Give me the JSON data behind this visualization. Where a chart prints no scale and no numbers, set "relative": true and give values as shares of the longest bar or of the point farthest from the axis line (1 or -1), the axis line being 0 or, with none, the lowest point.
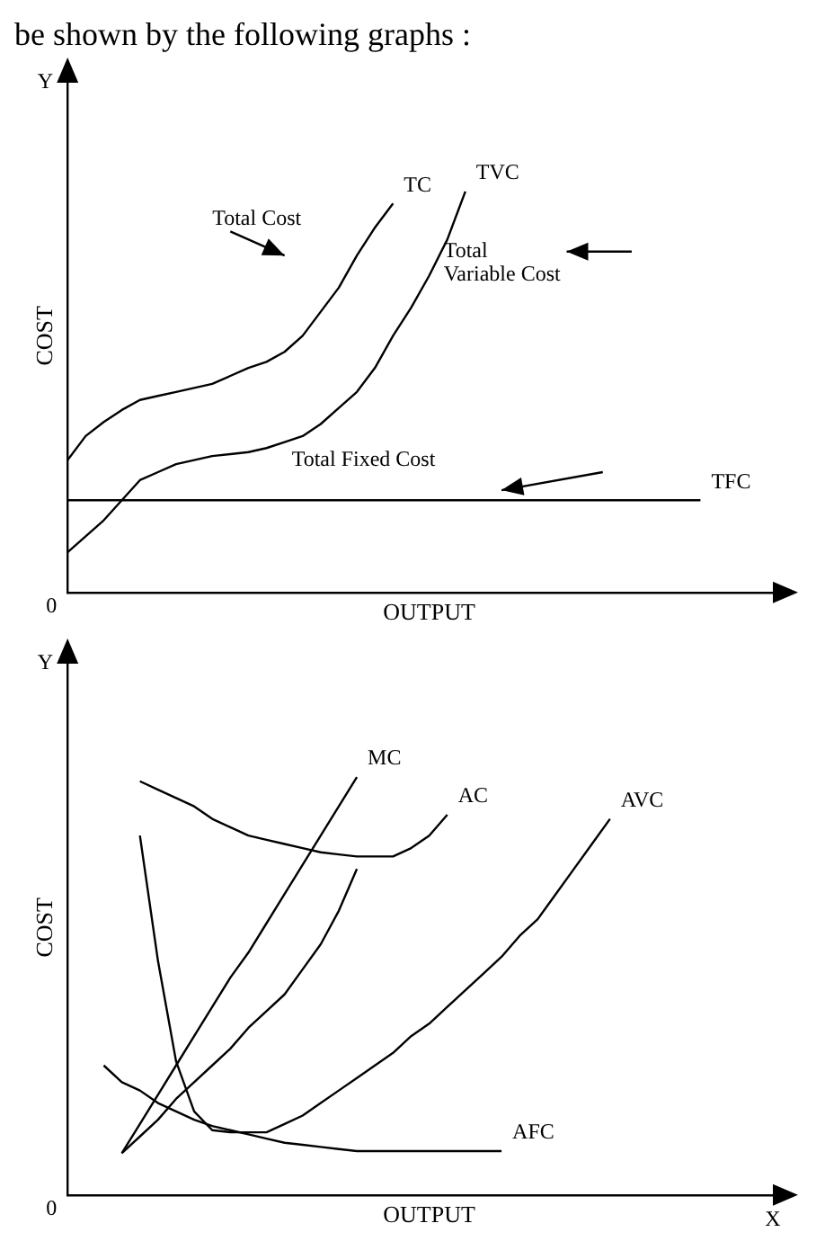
{
  "chart_data": [
    {
      "type": "line",
      "title": "be shown by the following graphs :",
      "relative": true,
      "ylabel": "COST",
      "xlabel": "OUTPUT",
      "marker": "none",
      "categories": [
        null,
        null,
        null,
        null,
        null,
        null,
        null,
        null,
        null,
        null,
        null,
        null,
        null,
        null,
        null,
        null,
        null,
        null,
        null,
        null,
        null,
        null,
        null,
        null,
        null,
        null,
        null,
        null,
        null,
        null,
        null,
        null,
        null,
        null,
        null,
        null,
        null,
        null,
        null,
        null,
        null
      ],
      "series": [
        {
          "name": "TC",
          "color": "#000000",
          "values": [
            0.33,
            0.39,
            0.425,
            0.455,
            0.48,
            0.49,
            0.5,
            0.51,
            0.52,
            0.54,
            0.56,
            0.575,
            0.6,
            0.64,
            0.7,
            0.76,
            0.84,
            0.91,
            0.97,
            null,
            null,
            null,
            null,
            null,
            null,
            null,
            null,
            null,
            null,
            null,
            null,
            null,
            null,
            null,
            null,
            null,
            null,
            null,
            null,
            null,
            null
          ]
        },
        {
          "name": "TVC",
          "color": "#000000",
          "values": [
            0.1,
            0.14,
            0.18,
            0.23,
            0.28,
            0.3,
            0.32,
            0.33,
            0.34,
            0.345,
            0.35,
            0.36,
            0.375,
            0.39,
            0.42,
            0.46,
            0.5,
            0.56,
            0.64,
            0.71,
            0.79,
            0.88,
            1,
            null,
            null,
            null,
            null,
            null,
            null,
            null,
            null,
            null,
            null,
            null,
            null,
            null,
            null,
            null,
            null,
            null,
            null
          ]
        },
        {
          "name": "TFC",
          "color": "#000000",
          "values": [
            0.23,
            0.23,
            0.23,
            0.23,
            0.23,
            0.23,
            0.23,
            0.23,
            0.23,
            0.23,
            0.23,
            0.23,
            0.23,
            0.23,
            0.23,
            0.23,
            0.23,
            0.23,
            0.23,
            0.23,
            0.23,
            0.23,
            0.23,
            0.23,
            0.23,
            0.23,
            0.23,
            0.23,
            0.23,
            0.23,
            0.23,
            0.23,
            0.23,
            0.23,
            0.23,
            0.23,
            null,
            null,
            null,
            null,
            null
          ]
        }
      ],
      "annotations": [
        "0",
        "Y",
        "Total Cost",
        "Total Variable Cost",
        "Total Fixed Cost"
      ]
    },
    {
      "type": "line",
      "relative": true,
      "ylabel": "COST",
      "xlabel": "OUTPUT",
      "marker": "none",
      "categories": [
        null,
        null,
        null,
        null,
        null,
        null,
        null,
        null,
        null,
        null,
        null,
        null,
        null,
        null,
        null,
        null,
        null,
        null,
        null,
        null,
        null,
        null,
        null,
        null,
        null,
        null,
        null,
        null,
        null,
        null,
        null,
        null,
        null,
        null,
        null,
        null,
        null,
        null,
        null,
        null,
        null
      ],
      "series": [
        {
          "name": "MC",
          "color": "#000000",
          "values": [
            null,
            null,
            null,
            0.1,
            0.17,
            0.24,
            0.31,
            0.38,
            0.45,
            0.52,
            0.58,
            0.65,
            0.72,
            0.79,
            0.86,
            0.93,
            1,
            null,
            null,
            null,
            null,
            null,
            null,
            null,
            null,
            null,
            null,
            null,
            null,
            null,
            null,
            null,
            null,
            null,
            null,
            null,
            null,
            null,
            null,
            null,
            null
          ]
        },
        {
          "color": "#000000",
          "values": [
            null,
            null,
            null,
            0.1,
            0.14,
            0.18,
            0.23,
            0.27,
            0.31,
            0.35,
            0.4,
            0.44,
            0.48,
            0.54,
            0.6,
            0.68,
            0.78,
            null,
            null,
            null,
            null,
            null,
            null,
            null,
            null,
            null,
            null,
            null,
            null,
            null,
            null,
            null,
            null,
            null,
            null,
            null,
            null,
            null,
            null,
            null,
            null
          ]
        },
        {
          "name": "AC",
          "color": "#000000",
          "values": [
            null,
            null,
            null,
            null,
            0.99,
            0.97,
            0.95,
            0.93,
            0.9,
            0.88,
            0.86,
            0.85,
            0.84,
            0.83,
            0.82,
            0.815,
            0.81,
            0.81,
            0.81,
            0.83,
            0.86,
            0.91,
            null,
            null,
            null,
            null,
            null,
            null,
            null,
            null,
            null,
            null,
            null,
            null,
            null,
            null,
            null,
            null,
            null,
            null,
            null
          ]
        },
        {
          "name": "AVC",
          "color": "#000000",
          "values": [
            null,
            null,
            null,
            null,
            0.86,
            0.56,
            0.32,
            0.2,
            0.155,
            0.15,
            0.15,
            0.15,
            0.17,
            0.19,
            0.22,
            0.25,
            0.28,
            0.31,
            0.34,
            0.38,
            0.41,
            0.45,
            0.49,
            0.53,
            0.57,
            0.62,
            0.66,
            0.72,
            0.78,
            0.84,
            0.9,
            null,
            null,
            null,
            null,
            null,
            null,
            null,
            null,
            null,
            null
          ]
        },
        {
          "name": "AFC",
          "color": "#000000",
          "values": [
            null,
            null,
            0.31,
            0.27,
            0.25,
            0.22,
            0.2,
            0.18,
            0.165,
            0.155,
            0.145,
            0.135,
            0.125,
            0.12,
            0.115,
            0.11,
            0.105,
            0.105,
            0.105,
            0.105,
            0.105,
            0.105,
            0.105,
            0.105,
            0.105,
            null,
            null,
            null,
            null,
            null,
            null,
            null,
            null,
            null,
            null,
            null,
            null,
            null,
            null,
            null,
            null
          ]
        }
      ],
      "annotations": [
        "0",
        "Y",
        "X"
      ]
    }
  ]
}
